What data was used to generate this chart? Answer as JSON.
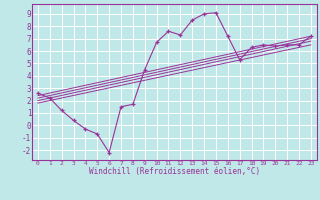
{
  "xlabel": "Windchill (Refroidissement éolien,°C)",
  "bg_color": "#c0e8e8",
  "line_color": "#993399",
  "grid_color": "#ffffff",
  "xlim": [
    -0.5,
    23.5
  ],
  "ylim": [
    -2.8,
    9.8
  ],
  "xticks": [
    0,
    1,
    2,
    3,
    4,
    5,
    6,
    7,
    8,
    9,
    10,
    11,
    12,
    13,
    14,
    15,
    16,
    17,
    18,
    19,
    20,
    21,
    22,
    23
  ],
  "yticks": [
    -2,
    -1,
    0,
    1,
    2,
    3,
    4,
    5,
    6,
    7,
    8,
    9
  ],
  "curve1_x": [
    0,
    1,
    2,
    3,
    4,
    5,
    6,
    7,
    8,
    9,
    10,
    11,
    12,
    13,
    14,
    15,
    16,
    17,
    18,
    19,
    20,
    21,
    22,
    23
  ],
  "curve1_y": [
    2.6,
    2.2,
    1.2,
    0.4,
    -0.3,
    -0.7,
    -2.2,
    1.5,
    1.7,
    4.5,
    6.7,
    7.6,
    7.3,
    8.5,
    9.0,
    9.1,
    7.2,
    5.3,
    6.3,
    6.5,
    6.4,
    6.5,
    6.5,
    7.2
  ],
  "line1_y_start": 1.8,
  "line1_y_end": 6.5,
  "line2_y_start": 2.0,
  "line2_y_end": 6.8,
  "line3_y_start": 2.2,
  "line3_y_end": 7.0,
  "line4_y_start": 2.4,
  "line4_y_end": 7.2
}
